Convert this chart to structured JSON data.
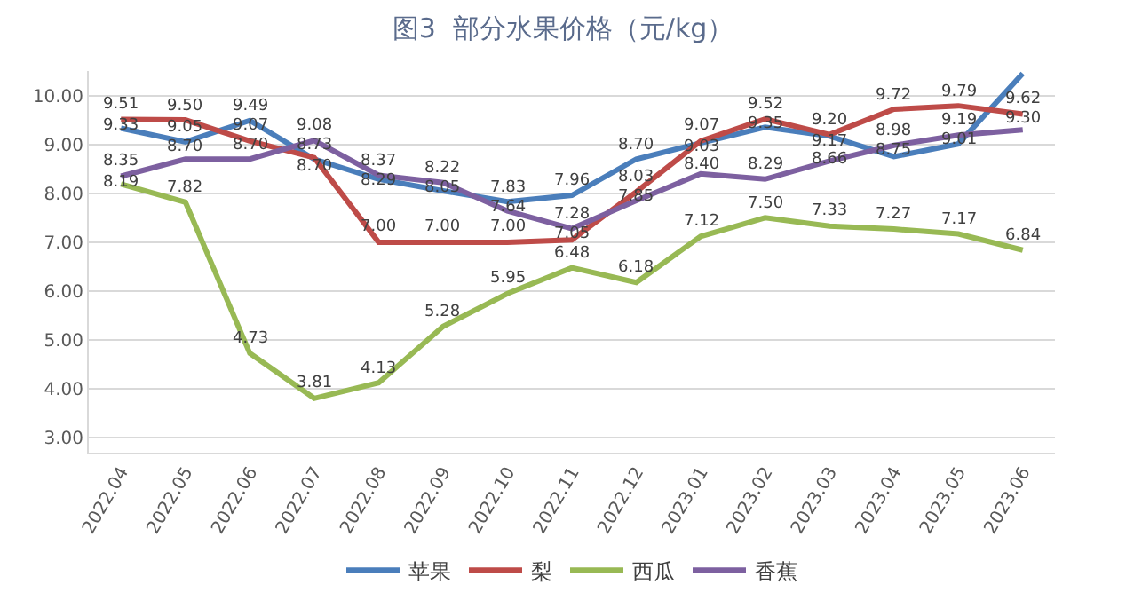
{
  "chart_data": {
    "type": "line",
    "title": "图3  部分水果价格（元/kg）",
    "categories": [
      "2022.04",
      "2022.05",
      "2022.06",
      "2022.07",
      "2022.08",
      "2022.09",
      "2022.10",
      "2022.11",
      "2022.12",
      "2023.01",
      "2023.02",
      "2023.03",
      "2023.04",
      "2023.05",
      "2023.06"
    ],
    "series": [
      {
        "name": "苹果",
        "color": "#4a7ebb",
        "values": [
          9.33,
          9.05,
          9.49,
          8.7,
          8.29,
          8.05,
          7.83,
          7.96,
          8.7,
          9.03,
          9.35,
          9.17,
          8.75,
          9.01,
          10.45
        ],
        "value_labels": [
          "9.33",
          "9.05",
          "9.49",
          "8.70",
          "8.29",
          "8.05",
          "7.83",
          "7.96",
          "8.70",
          "9.03",
          "9.35",
          "9.17",
          "8.75",
          "9.01",
          null
        ]
      },
      {
        "name": "梨",
        "color": "#be4b48",
        "values": [
          9.51,
          9.5,
          9.07,
          8.73,
          7.0,
          7.0,
          7.0,
          7.05,
          8.03,
          9.07,
          9.52,
          9.2,
          9.72,
          9.79,
          9.62
        ],
        "value_labels": [
          "9.51",
          "9.50",
          "9.07",
          "8.73",
          "7.00",
          "7.00",
          "7.00",
          "7.05",
          "8.03",
          "9.07",
          "9.52",
          "9.20",
          "9.72",
          "9.79",
          "9.62"
        ]
      },
      {
        "name": "西瓜",
        "color": "#98b954",
        "values": [
          8.19,
          7.82,
          4.73,
          3.81,
          4.13,
          5.28,
          5.95,
          6.48,
          6.18,
          7.12,
          7.5,
          7.33,
          7.27,
          7.17,
          6.84
        ],
        "value_labels": [
          "8.19",
          "7.82",
          "4.73",
          "3.81",
          "4.13",
          "5.28",
          "5.95",
          "6.48",
          "6.18",
          "7.12",
          "7.50",
          "7.33",
          "7.27",
          "7.17",
          "6.84"
        ]
      },
      {
        "name": "香蕉",
        "color": "#7d60a0",
        "values": [
          8.35,
          8.7,
          8.7,
          9.08,
          8.37,
          8.22,
          7.64,
          7.28,
          7.85,
          8.4,
          8.29,
          8.66,
          8.98,
          9.19,
          9.3
        ],
        "value_labels": [
          "8.35",
          "8.70",
          "8.70",
          "9.08",
          "8.37",
          "8.22",
          "7.64",
          "7.28",
          "7.85",
          "8.40",
          "8.29",
          "8.66",
          "8.98",
          "9.19",
          "9.30"
        ]
      }
    ],
    "ylim": [
      2.7,
      10.5
    ],
    "yticks": [
      {
        "value": 3,
        "label": "3.00"
      },
      {
        "value": 4,
        "label": "4.00"
      },
      {
        "value": 5,
        "label": "5.00"
      },
      {
        "value": 6,
        "label": "6.00"
      },
      {
        "value": 7,
        "label": "7.00"
      },
      {
        "value": 8,
        "label": "8.00"
      },
      {
        "value": 9,
        "label": "9.00"
      },
      {
        "value": 10,
        "label": "10.00"
      }
    ],
    "grid": "y",
    "legend": "bottom",
    "marker": "none",
    "line_style": "solid"
  }
}
